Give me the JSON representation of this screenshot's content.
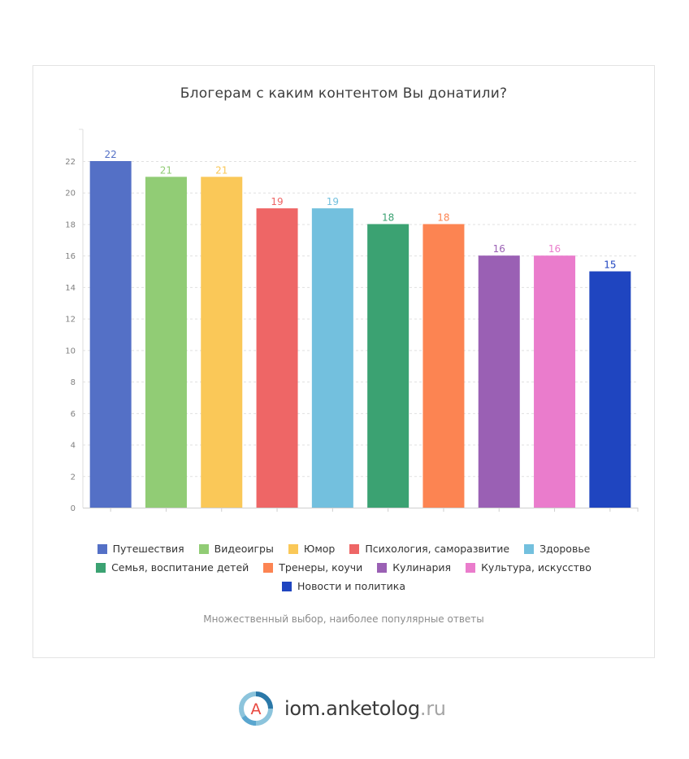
{
  "chart_data": {
    "type": "bar",
    "title": "Блогерам с каким контентом Вы донатили?",
    "categories": [
      "Путешествия",
      "Видеоигры",
      "Юмор",
      "Психология, саморазвитие",
      "Здоровье",
      "Семья, воспитание детей",
      "Тренеры, коучи",
      "Кулинария",
      "Культура, искусство",
      "Новости и политика"
    ],
    "values": [
      22,
      21,
      21,
      19,
      19,
      18,
      18,
      16,
      16,
      15
    ],
    "colors": [
      "#5470c6",
      "#91cc75",
      "#fac858",
      "#ee6666",
      "#73c0de",
      "#3ba272",
      "#fc8452",
      "#9a60b4",
      "#ea7ccc",
      "#1f45c0"
    ],
    "ylim": [
      0,
      22
    ],
    "y_ticks": [
      "0",
      "2",
      "4",
      "6",
      "8",
      "10",
      "12",
      "14",
      "16",
      "18",
      "20",
      "22"
    ],
    "grid": true,
    "legend_position": "bottom",
    "note": "Множественный выбор, наиболее популярные ответы"
  },
  "footer": {
    "logo_letter": "A",
    "brand_name": "iom.anketolog",
    "brand_tld": ".ru"
  }
}
